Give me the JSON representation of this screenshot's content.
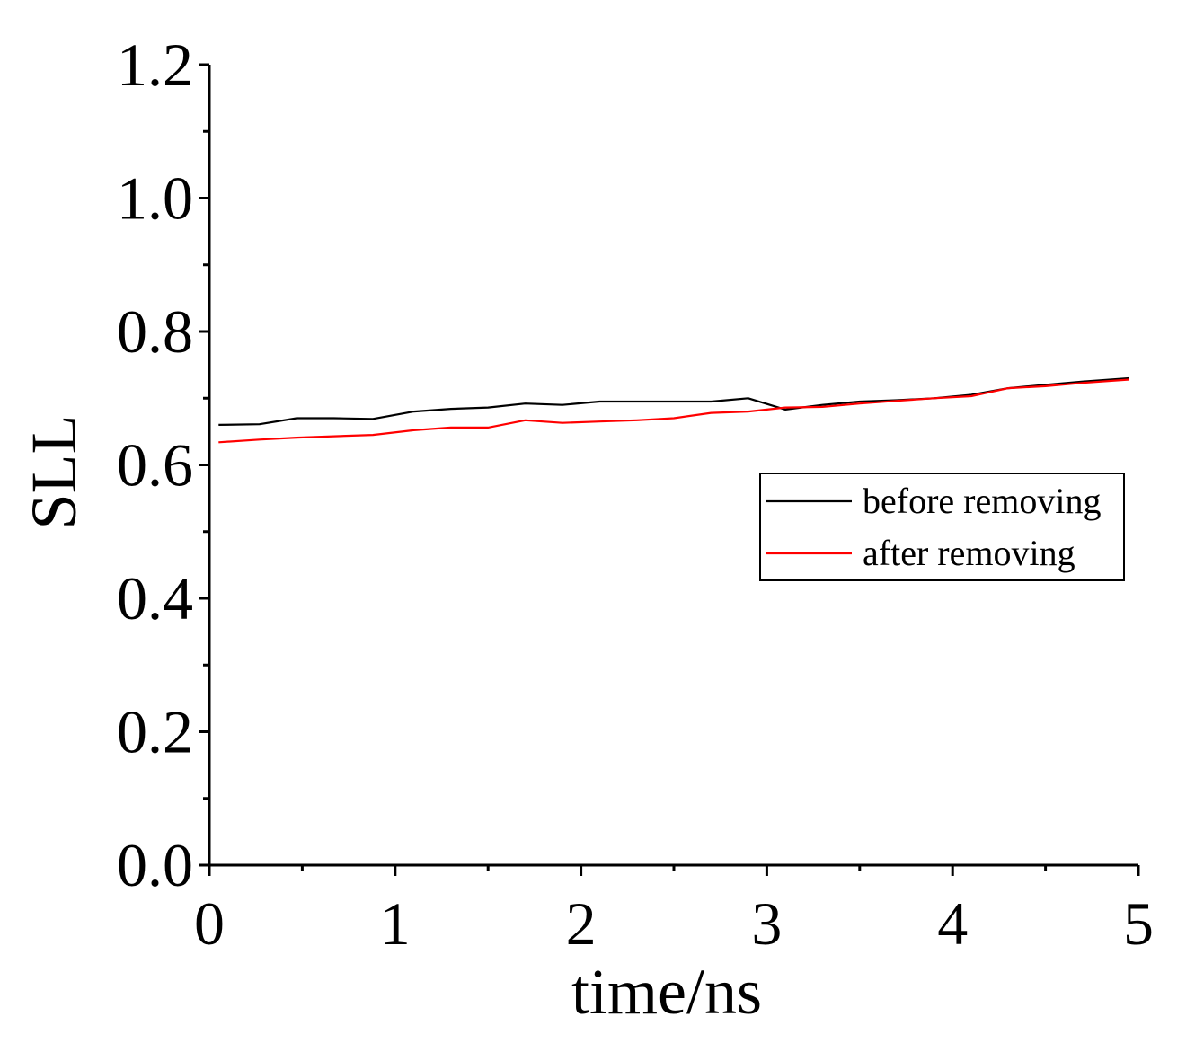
{
  "chart_data": {
    "type": "line",
    "title": "",
    "xlabel": "time/ns",
    "ylabel": "SLL",
    "xlim": [
      0,
      5
    ],
    "ylim": [
      0,
      1.2
    ],
    "x_ticks": [
      "0",
      "1",
      "2",
      "3",
      "4",
      "5"
    ],
    "y_ticks": [
      "0.0",
      "0.2",
      "0.4",
      "0.6",
      "0.8",
      "1.0",
      "1.2"
    ],
    "grid": false,
    "legend_position": "right",
    "series": [
      {
        "name": "before removing",
        "color": "#000000",
        "x": [
          0.05,
          0.27,
          0.47,
          0.67,
          0.88,
          1.1,
          1.3,
          1.5,
          1.7,
          1.9,
          2.1,
          2.3,
          2.5,
          2.7,
          2.9,
          3.1,
          3.3,
          3.5,
          3.7,
          3.9,
          4.1,
          4.3,
          4.5,
          4.7,
          4.95
        ],
        "y": [
          0.66,
          0.661,
          0.67,
          0.67,
          0.669,
          0.68,
          0.684,
          0.686,
          0.692,
          0.69,
          0.695,
          0.695,
          0.695,
          0.695,
          0.7,
          0.683,
          0.69,
          0.695,
          0.697,
          0.7,
          0.705,
          0.715,
          0.72,
          0.725,
          0.73
        ]
      },
      {
        "name": "after removing",
        "color": "#ff0000",
        "x": [
          0.05,
          0.27,
          0.47,
          0.67,
          0.88,
          1.1,
          1.3,
          1.5,
          1.7,
          1.9,
          2.1,
          2.3,
          2.5,
          2.7,
          2.9,
          3.1,
          3.3,
          3.5,
          3.7,
          3.9,
          4.1,
          4.3,
          4.5,
          4.7,
          4.95
        ],
        "y": [
          0.634,
          0.638,
          0.641,
          0.643,
          0.645,
          0.652,
          0.656,
          0.656,
          0.667,
          0.663,
          0.665,
          0.667,
          0.67,
          0.678,
          0.68,
          0.686,
          0.687,
          0.692,
          0.696,
          0.7,
          0.703,
          0.715,
          0.718,
          0.723,
          0.728
        ]
      }
    ]
  }
}
